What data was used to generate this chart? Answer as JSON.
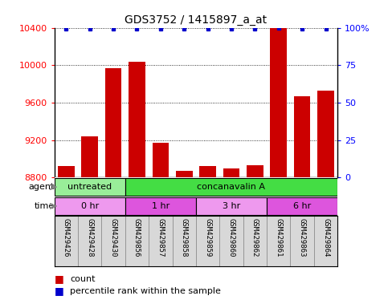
{
  "title": "GDS3752 / 1415897_a_at",
  "samples": [
    "GSM429426",
    "GSM429428",
    "GSM429430",
    "GSM429856",
    "GSM429857",
    "GSM429858",
    "GSM429859",
    "GSM429860",
    "GSM429862",
    "GSM429861",
    "GSM429863",
    "GSM429864"
  ],
  "counts": [
    8920,
    9240,
    9970,
    10040,
    9175,
    8870,
    8920,
    8900,
    8930,
    10400,
    9670,
    9730
  ],
  "percentile": [
    99,
    99,
    99,
    99,
    99,
    99,
    99,
    99,
    99,
    100,
    99,
    99
  ],
  "ylim": [
    8800,
    10400
  ],
  "yticks": [
    8800,
    9200,
    9600,
    10000,
    10400
  ],
  "right_yticks": [
    0,
    25,
    50,
    75,
    100
  ],
  "bar_color": "#cc0000",
  "dot_color": "#0000cc",
  "agent_labels": [
    {
      "label": "untreated",
      "start": 0,
      "end": 3,
      "color": "#99ee99"
    },
    {
      "label": "concanavalin A",
      "start": 3,
      "end": 12,
      "color": "#44dd44"
    }
  ],
  "time_labels": [
    {
      "label": "0 hr",
      "start": 0,
      "end": 3,
      "color": "#ee99ee"
    },
    {
      "label": "1 hr",
      "start": 3,
      "end": 6,
      "color": "#dd55dd"
    },
    {
      "label": "3 hr",
      "start": 6,
      "end": 9,
      "color": "#ee99ee"
    },
    {
      "label": "6 hr",
      "start": 9,
      "end": 12,
      "color": "#dd55dd"
    }
  ],
  "legend_count_label": "count",
  "legend_pct_label": "percentile rank within the sample",
  "xlabel_agent": "agent",
  "xlabel_time": "time",
  "bg_color": "#ffffff",
  "tick_area_color": "#d8d8d8",
  "grid_color": "#000000"
}
